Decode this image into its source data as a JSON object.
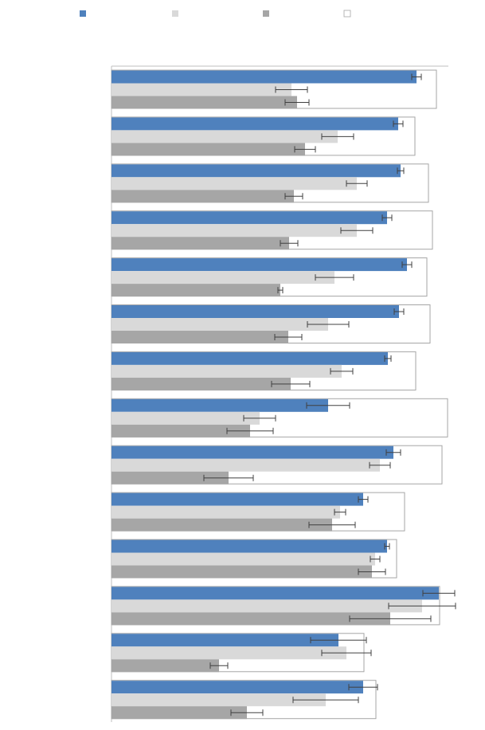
{
  "chart_data": {
    "type": "hbar",
    "categories": [
      null,
      null,
      null,
      null,
      null,
      null,
      null,
      null,
      null,
      null,
      null,
      null,
      null,
      null
    ],
    "xlim": [
      0,
      425
    ],
    "edgecolor": "#a6a6a6",
    "series": [
      {
        "color": "#4f81bd",
        "values": [
          383,
          360,
          363,
          346,
          371,
          361,
          347,
          272,
          354,
          316,
          346,
          411,
          285,
          316
        ],
        "errors": [
          6,
          6,
          4,
          6,
          6,
          6,
          4,
          27,
          9,
          6,
          3,
          20,
          35,
          18
        ]
      },
      {
        "color": "#d9d9d9",
        "values": [
          226,
          284,
          308,
          308,
          280,
          272,
          289,
          186,
          337,
          287,
          331,
          390,
          295,
          269
        ],
        "errors": [
          20,
          20,
          13,
          20,
          24,
          26,
          14,
          20,
          13,
          7,
          6,
          42,
          31,
          41
        ]
      },
      {
        "color": "#a6a6a6",
        "values": [
          233,
          243,
          229,
          223,
          212,
          222,
          225,
          174,
          147,
          277,
          327,
          350,
          135,
          170
        ],
        "errors": [
          15,
          13,
          11,
          11,
          3,
          17,
          24,
          29,
          31,
          29,
          17,
          51,
          11,
          20
        ]
      },
      {
        "color": "#ffffff",
        "values": [
          408,
          381,
          398,
          403,
          396,
          400,
          382,
          422,
          415,
          368,
          358,
          412,
          317,
          332
        ]
      }
    ]
  }
}
